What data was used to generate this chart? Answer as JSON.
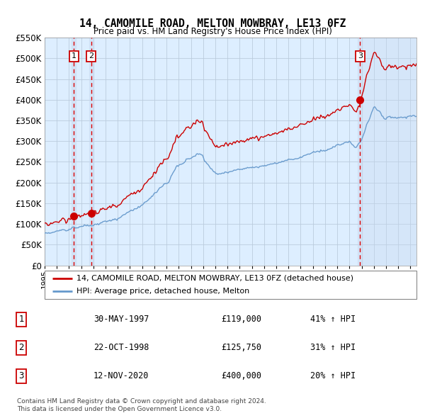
{
  "title": "14, CAMOMILE ROAD, MELTON MOWBRAY, LE13 0FZ",
  "subtitle": "Price paid vs. HM Land Registry's House Price Index (HPI)",
  "ylim": [
    0,
    550000
  ],
  "yticks": [
    0,
    50000,
    100000,
    150000,
    200000,
    250000,
    300000,
    350000,
    400000,
    450000,
    500000,
    550000
  ],
  "ytick_labels": [
    "£0",
    "£50K",
    "£100K",
    "£150K",
    "£200K",
    "£250K",
    "£300K",
    "£350K",
    "£400K",
    "£450K",
    "£500K",
    "£550K"
  ],
  "xlim_start": 1995.0,
  "xlim_end": 2025.5,
  "sale_dates": [
    1997.41,
    1998.81,
    2020.87
  ],
  "sale_prices": [
    119000,
    125750,
    400000
  ],
  "sale_labels": [
    "1",
    "2",
    "3"
  ],
  "sale_date_strs": [
    "30-MAY-1997",
    "22-OCT-1998",
    "12-NOV-2020"
  ],
  "sale_price_strs": [
    "£119,000",
    "£125,750",
    "£400,000"
  ],
  "sale_hpi_strs": [
    "41% ↑ HPI",
    "31% ↑ HPI",
    "20% ↑ HPI"
  ],
  "legend_line1": "14, CAMOMILE ROAD, MELTON MOWBRAY, LE13 0FZ (detached house)",
  "legend_line2": "HPI: Average price, detached house, Melton",
  "footer1": "Contains HM Land Registry data © Crown copyright and database right 2024.",
  "footer2": "This data is licensed under the Open Government Licence v3.0.",
  "red_color": "#cc0000",
  "blue_color": "#6699cc",
  "bg_color": "#ddeeff",
  "grid_color": "#bbccdd",
  "vline_color": "#dd0000",
  "shade_color": "#c8d8ee"
}
